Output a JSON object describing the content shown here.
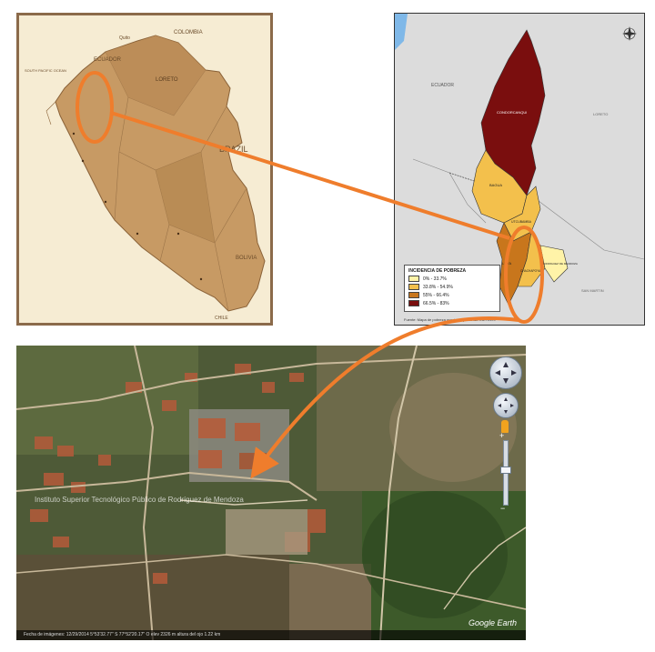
{
  "peru_map": {
    "labels": {
      "ecuador": "ECUADOR",
      "colombia": "COLOMBIA",
      "brazil": "BRAZIL",
      "bolivia": "BOLIVIA",
      "loreto": "LORETO",
      "chile": "CHILE",
      "quito": "Quito",
      "south_pacific": "SOUTH PACIFIC OCEAN"
    }
  },
  "province_map": {
    "labels": {
      "ecuador": "ECUADOR",
      "condorcanqui": "CONDORCANQUI",
      "bagua": "BAGUA",
      "utcubamba": "UTCUBAMBA",
      "luya": "LUYA",
      "chachapoyas": "CHACHAPOYAS",
      "rodriguez": "RODRIGUEZ DE MENDOZA",
      "loreto": "LORETO",
      "san_martin": "SAN MARTIN"
    },
    "legend": {
      "title": "INCIDENCIA DE POBREZA",
      "items": [
        {
          "label": "0% - 33.7%",
          "color": "#fff3a8"
        },
        {
          "label": "33.8% - 54.9%",
          "color": "#f3c04c"
        },
        {
          "label": "55% - 66.4%",
          "color": "#c8761c"
        },
        {
          "label": "66.5% - 83%",
          "color": "#7a0e0e"
        }
      ]
    },
    "source": "Fuente: Mapa de pobreza provincial y distrital. INEI 2009"
  },
  "satellite": {
    "logo": "Google Earth",
    "status": "Fecha de imágenes: 12/29/2014    5°53'32.77\" S  77°52'20.17\" O  elev 2326 m    altura del ojo 1.22 km",
    "campus_label": "Instituto Superior Tecnológico Público de Rodríguez de Mendoza"
  },
  "colors": {
    "callout_arrow": "#ef7d2c",
    "peru_highlight": "#c79a64",
    "peru_land": "#f1e2bd"
  }
}
